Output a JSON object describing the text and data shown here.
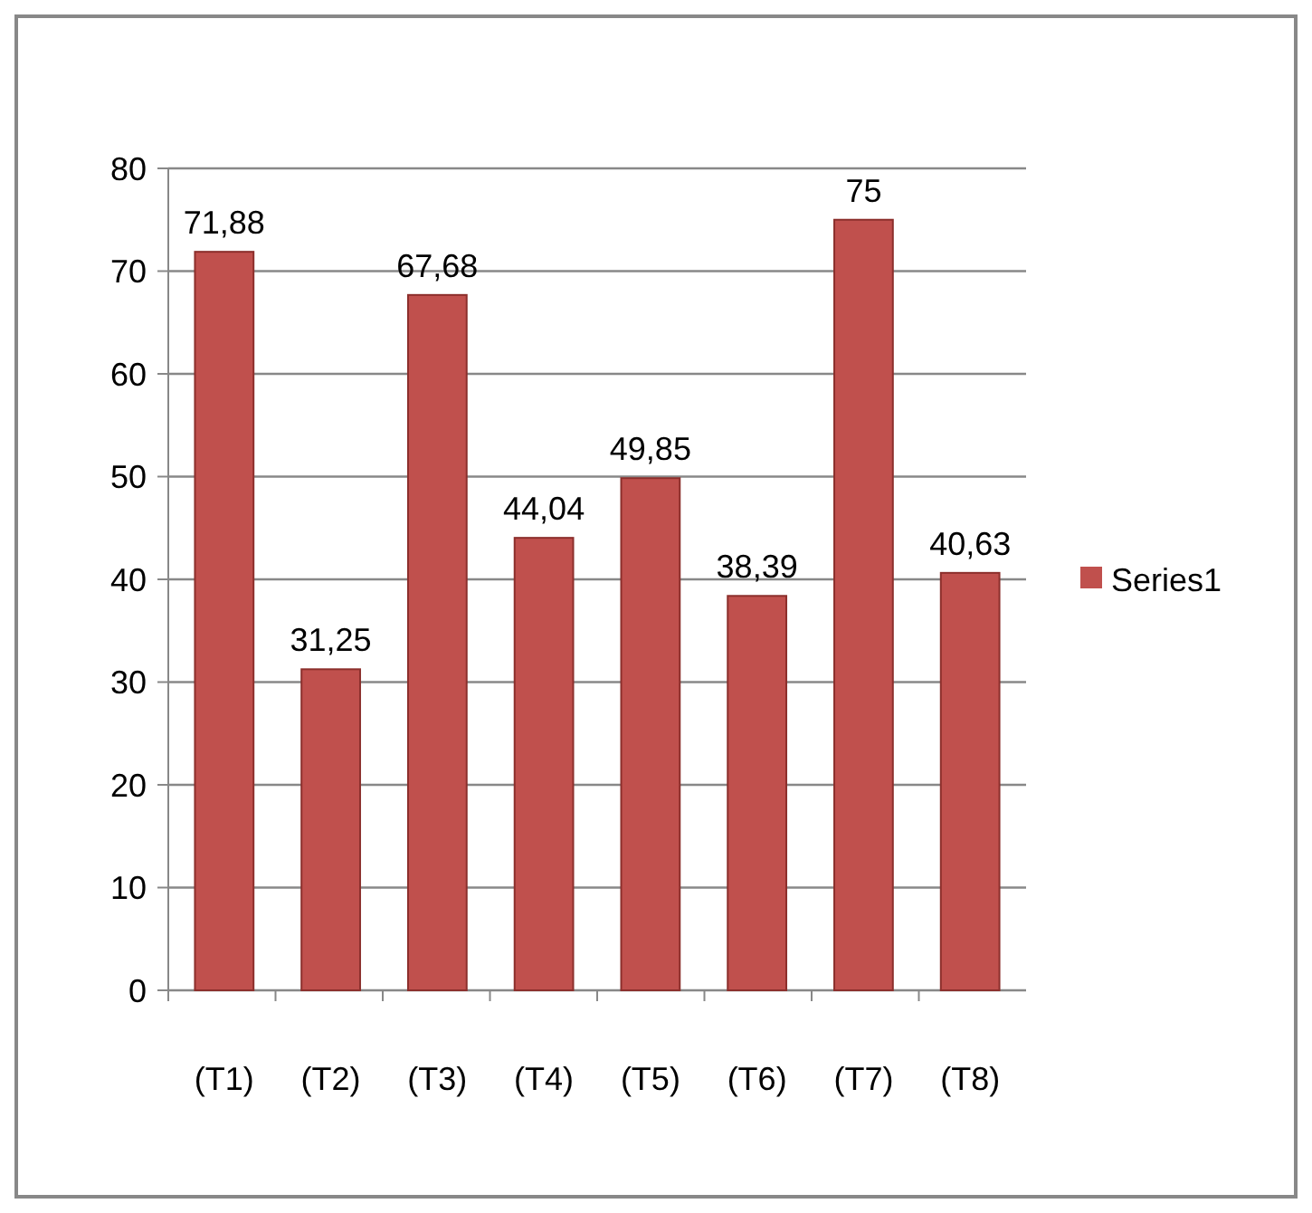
{
  "chart_data": {
    "type": "bar",
    "categories": [
      "(T1)",
      "(T2)",
      "(T3)",
      "(T4)",
      "(T5)",
      "(T6)",
      "(T7)",
      "(T8)"
    ],
    "series": [
      {
        "name": "Series1",
        "color": "#c0504d",
        "values": [
          71.88,
          31.25,
          67.68,
          44.04,
          49.85,
          38.39,
          75,
          40.63
        ],
        "value_labels": [
          "71,88",
          "31,25",
          "67,68",
          "44,04",
          "49,85",
          "38,39",
          "75",
          "40,63"
        ]
      }
    ],
    "ylim": [
      0,
      80
    ],
    "yticks": [
      0,
      10,
      20,
      30,
      40,
      50,
      60,
      70,
      80
    ],
    "grid": "y",
    "legend": "right"
  }
}
